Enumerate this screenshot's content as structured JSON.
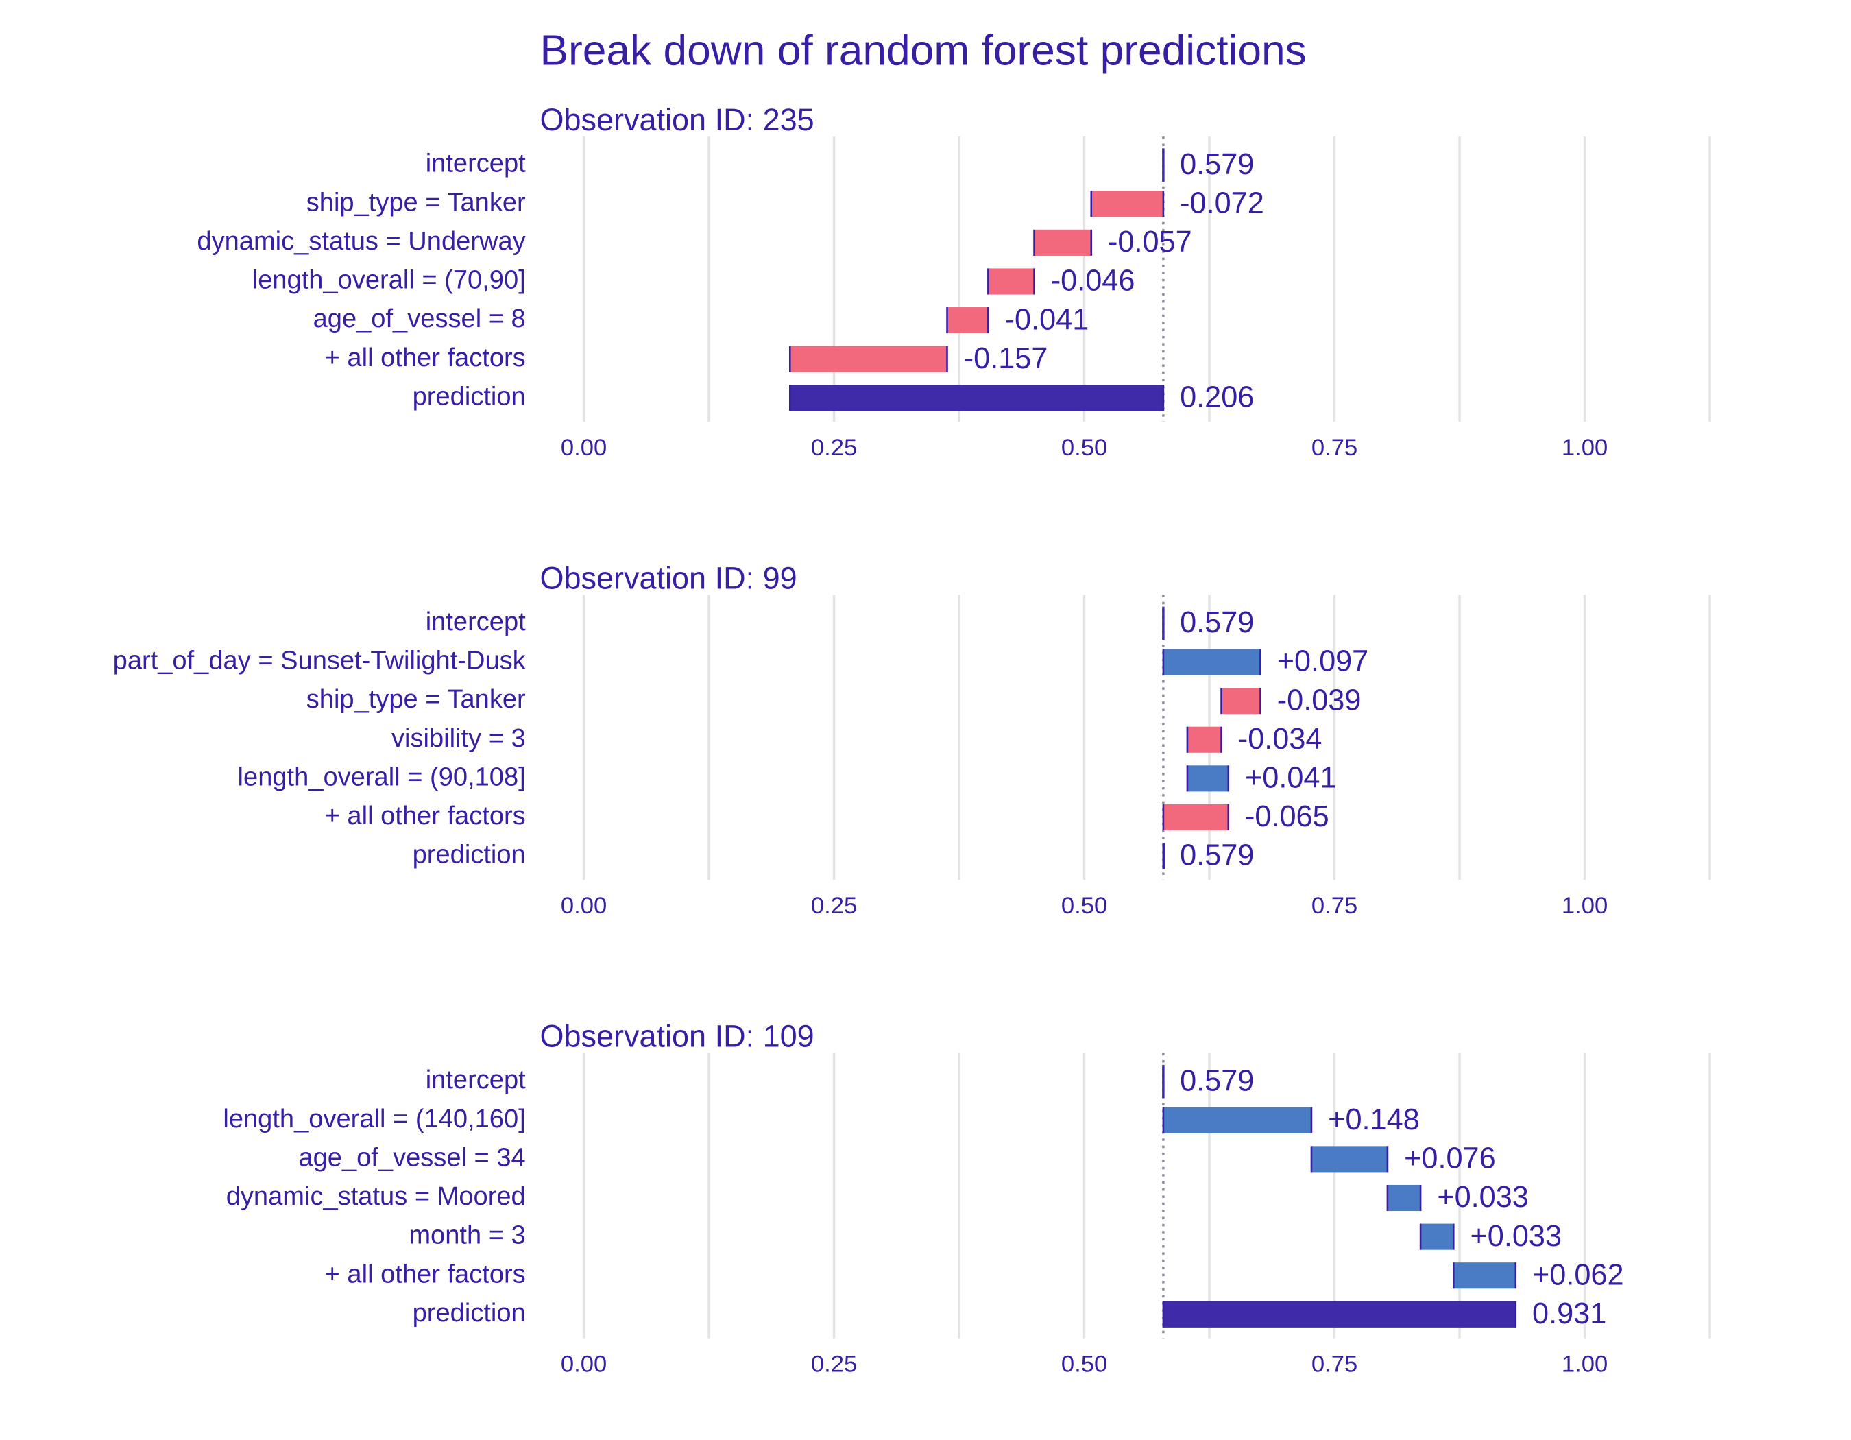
{
  "title": "Break down of random forest predictions",
  "chart_data": [
    {
      "type": "waterfall",
      "subtitle": "Observation ID: 235",
      "categories": [
        "intercept",
        "ship_type = Tanker",
        "dynamic_status = Underway",
        "length_overall = (70,90]",
        "age_of_vessel = 8",
        "+ all other factors",
        "prediction"
      ],
      "values": [
        0.579,
        -0.072,
        -0.057,
        -0.046,
        -0.041,
        -0.157,
        0.206
      ],
      "value_labels": [
        "0.579",
        "-0.072",
        "-0.057",
        "-0.046",
        "-0.041",
        "-0.157",
        "0.206"
      ],
      "xlim": [
        0,
        1.125
      ],
      "xticks": [
        {
          "value": 0,
          "label": "0.00"
        },
        {
          "value": 0.25,
          "label": "0.25"
        },
        {
          "value": 0.5,
          "label": "0.50"
        },
        {
          "value": 0.75,
          "label": "0.75"
        },
        {
          "value": 1,
          "label": "1.00"
        }
      ],
      "minor_grid": [
        0.125,
        0.375,
        0.625,
        0.875,
        1.125
      ],
      "grid": true,
      "increase_color": "#4a7cc6",
      "decrease_color": "#f2687d",
      "total_color": "#3f2aa8"
    },
    {
      "type": "waterfall",
      "subtitle": "Observation ID: 99",
      "categories": [
        "intercept",
        "part_of_day = Sunset-Twilight-Dusk",
        "ship_type = Tanker",
        "visibility = 3",
        "length_overall = (90,108]",
        "+ all other factors",
        "prediction"
      ],
      "values": [
        0.579,
        0.097,
        -0.039,
        -0.034,
        0.041,
        -0.065,
        0.579
      ],
      "value_labels": [
        "0.579",
        "+0.097",
        "-0.039",
        "-0.034",
        "+0.041",
        "-0.065",
        "0.579"
      ],
      "xlim": [
        0,
        1.125
      ],
      "xticks": [
        {
          "value": 0,
          "label": "0.00"
        },
        {
          "value": 0.25,
          "label": "0.25"
        },
        {
          "value": 0.5,
          "label": "0.50"
        },
        {
          "value": 0.75,
          "label": "0.75"
        },
        {
          "value": 1,
          "label": "1.00"
        }
      ],
      "minor_grid": [
        0.125,
        0.375,
        0.625,
        0.875,
        1.125
      ],
      "grid": true,
      "increase_color": "#4a7cc6",
      "decrease_color": "#f2687d",
      "total_color": "#3f2aa8"
    },
    {
      "type": "waterfall",
      "subtitle": "Observation ID: 109",
      "categories": [
        "intercept",
        "length_overall = (140,160]",
        "age_of_vessel = 34",
        "dynamic_status = Moored",
        "month = 3",
        "+ all other factors",
        "prediction"
      ],
      "values": [
        0.579,
        0.148,
        0.076,
        0.033,
        0.033,
        0.062,
        0.931
      ],
      "value_labels": [
        "0.579",
        "+0.148",
        "+0.076",
        "+0.033",
        "+0.033",
        "+0.062",
        "0.931"
      ],
      "xlim": [
        0,
        1.125
      ],
      "xticks": [
        {
          "value": 0,
          "label": "0.00"
        },
        {
          "value": 0.25,
          "label": "0.25"
        },
        {
          "value": 0.5,
          "label": "0.50"
        },
        {
          "value": 0.75,
          "label": "0.75"
        },
        {
          "value": 1,
          "label": "1.00"
        }
      ],
      "minor_grid": [
        0.125,
        0.375,
        0.625,
        0.875,
        1.125
      ],
      "grid": true,
      "increase_color": "#4a7cc6",
      "decrease_color": "#f2687d",
      "total_color": "#3f2aa8"
    }
  ]
}
